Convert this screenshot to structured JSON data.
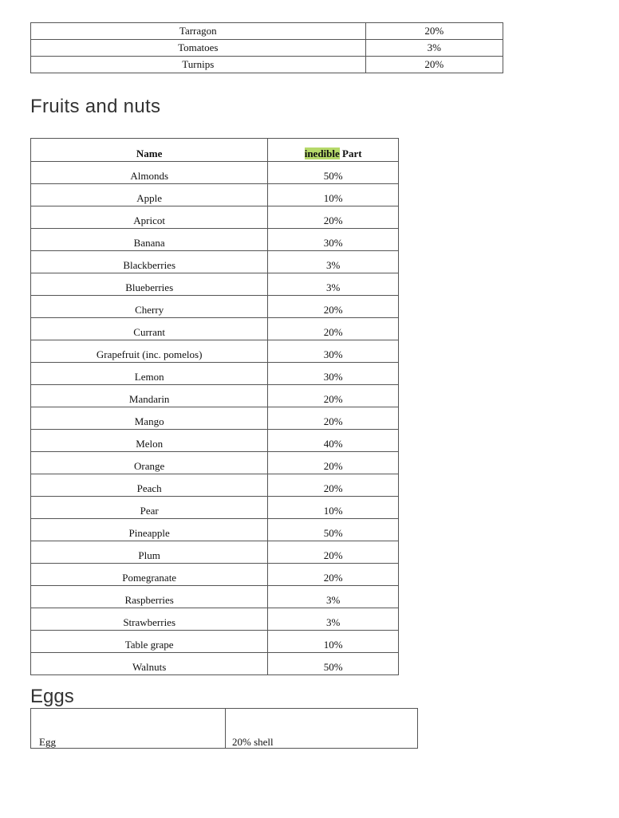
{
  "vegetables_tail": [
    {
      "name": "Tarragon",
      "inedible": "20%"
    },
    {
      "name": "Tomatoes",
      "inedible": "3%"
    },
    {
      "name": "Turnips",
      "inedible": "20%"
    }
  ],
  "fruits": {
    "heading": "Fruits and nuts",
    "header": {
      "name": "Name",
      "inedible_highlight": "inedible",
      "inedible_rest": " Part"
    },
    "rows": [
      {
        "name": "Almonds",
        "inedible": "50%"
      },
      {
        "name": "Apple",
        "inedible": "10%"
      },
      {
        "name": "Apricot",
        "inedible": "20%"
      },
      {
        "name": "Banana",
        "inedible": "30%"
      },
      {
        "name": "Blackberries",
        "inedible": "3%"
      },
      {
        "name": "Blueberries",
        "inedible": "3%"
      },
      {
        "name": "Cherry",
        "inedible": "20%"
      },
      {
        "name": "Currant",
        "inedible": "20%"
      },
      {
        "name": "Grapefruit (inc. pomelos)",
        "inedible": "30%"
      },
      {
        "name": "Lemon",
        "inedible": "30%"
      },
      {
        "name": "Mandarin",
        "inedible": "20%"
      },
      {
        "name": "Mango",
        "inedible": "20%"
      },
      {
        "name": "Melon",
        "inedible": "40%"
      },
      {
        "name": "Orange",
        "inedible": "20%"
      },
      {
        "name": "Peach",
        "inedible": "20%"
      },
      {
        "name": "Pear",
        "inedible": "10%"
      },
      {
        "name": "Pineapple",
        "inedible": "50%"
      },
      {
        "name": "Plum",
        "inedible": "20%"
      },
      {
        "name": "Pomegranate",
        "inedible": "20%"
      },
      {
        "name": "Raspberries",
        "inedible": "3%"
      },
      {
        "name": "Strawberries",
        "inedible": "3%"
      },
      {
        "name": "Table grape",
        "inedible": "10%"
      },
      {
        "name": "Walnuts",
        "inedible": "50%"
      }
    ]
  },
  "eggs": {
    "heading": "Eggs",
    "rows": [
      {
        "name": "Egg",
        "inedible": "20% shell"
      }
    ]
  },
  "colors": {
    "highlight": "#b6d96a",
    "border": "#555555"
  }
}
